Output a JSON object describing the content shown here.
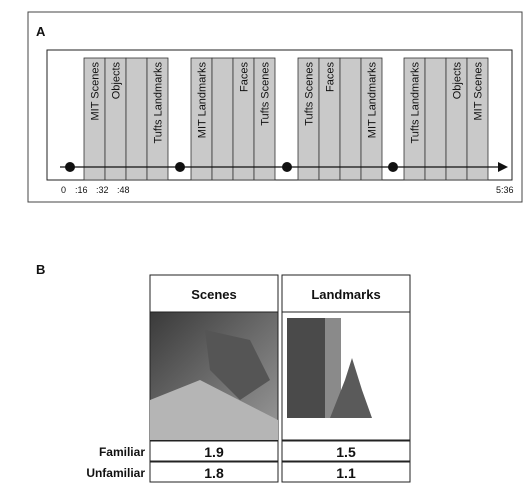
{
  "panel_a": {
    "label": "A",
    "groups": [
      {
        "blocks": [
          "MIT Scenes",
          "Objects",
          null,
          "Tufts Landmarks"
        ]
      },
      {
        "blocks": [
          "MIT Landmarks",
          null,
          "Faces",
          "Tufts Scenes"
        ]
      },
      {
        "blocks": [
          "Tufts Scenes",
          "Faces",
          null,
          "MIT Landmarks"
        ]
      },
      {
        "blocks": [
          "Tufts Landmarks",
          null,
          "Objects",
          "MIT Scenes"
        ]
      }
    ],
    "time_labels": [
      "0",
      ":16",
      ":32",
      ":48"
    ],
    "end_time": "5:36"
  },
  "panel_b": {
    "label": "B",
    "table": {
      "columns": [
        "Scenes",
        "Landmarks"
      ],
      "rows": [
        {
          "label": "Familiar",
          "cells": [
            "1.9",
            "1.5"
          ]
        },
        {
          "label": "Unfamiliar",
          "cells": [
            "1.8",
            "1.1"
          ]
        }
      ]
    }
  }
}
